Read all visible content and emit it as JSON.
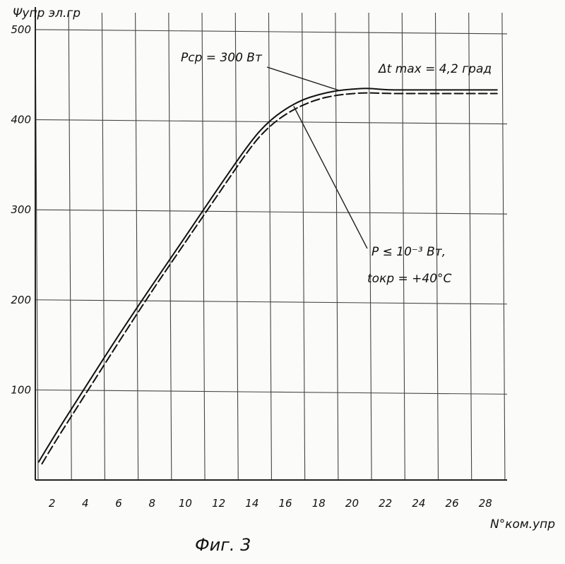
{
  "chart_data": {
    "type": "line",
    "ylabel": "Ψупр эл.гр",
    "xlabel": "N°ком.упр",
    "caption": "Фиг. 3",
    "xlim": [
      1,
      29.3
    ],
    "ylim": [
      0,
      525
    ],
    "x_ticks": [
      2,
      4,
      6,
      8,
      10,
      12,
      14,
      16,
      18,
      20,
      22,
      24,
      26,
      28
    ],
    "x_tick_labels": [
      "2",
      "4",
      "6",
      "8",
      "10",
      "12",
      "14",
      "16",
      "18",
      "20",
      "22",
      "24",
      "26",
      "28"
    ],
    "y_ticks": [
      100,
      200,
      300,
      400,
      500
    ],
    "y_tick_labels": [
      "100",
      "200",
      "300",
      "400",
      "500"
    ],
    "x_grid": [
      1,
      3,
      5,
      7,
      9,
      11,
      13,
      15,
      17,
      19,
      21,
      23,
      25,
      27,
      29
    ],
    "y_grid": [
      100,
      200,
      300,
      400,
      500
    ],
    "grid": true,
    "series": [
      {
        "style": "solid",
        "x": [
          1.2,
          2,
          4,
          6,
          8,
          10,
          12,
          14,
          15,
          16,
          17,
          18,
          19,
          20,
          21,
          22,
          24,
          26,
          28,
          28.7
        ],
        "y": [
          20,
          45,
          103,
          161,
          216,
          270,
          325,
          378,
          398,
          412,
          422,
          428,
          432,
          434,
          435,
          433,
          433,
          433,
          433,
          433
        ]
      },
      {
        "style": "dashed",
        "x": [
          1.4,
          2,
          4,
          6,
          8,
          10,
          12,
          14,
          15,
          16,
          17,
          18,
          19,
          20,
          21,
          22,
          24,
          26,
          28,
          28.7
        ],
        "y": [
          18,
          37,
          95,
          153,
          210,
          264,
          318,
          372,
          392,
          406,
          416,
          423,
          427,
          429,
          430,
          429,
          429,
          429,
          429,
          429
        ]
      }
    ],
    "annotations": [
      {
        "text": "Pср = 300 Вт",
        "arrow_to": [
          19.3,
          432
        ]
      },
      {
        "text": "Δt max = 4,2 град"
      },
      {
        "text": "P ≤ 10⁻³ Вт,",
        "arrow_to": [
          16.5,
          415
        ]
      },
      {
        "text": "tокр = +40°C"
      }
    ]
  }
}
